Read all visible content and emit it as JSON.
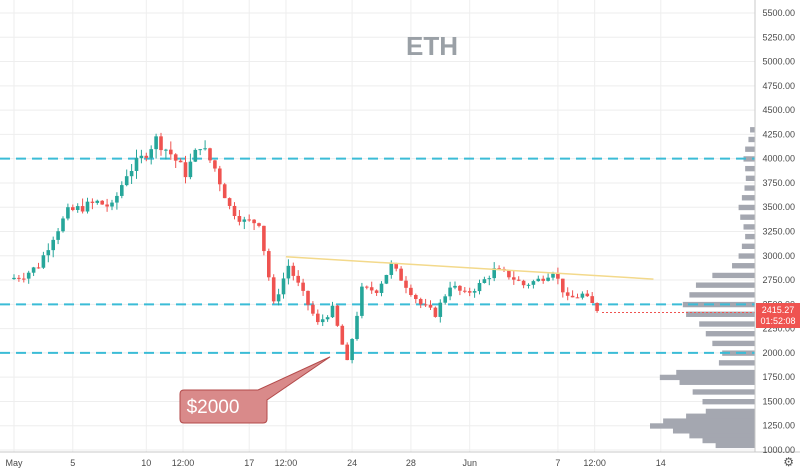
{
  "chart_data": {
    "type": "candlestick",
    "title": "ETH",
    "y_axis": {
      "position": "right",
      "min": 1000,
      "max": 5500,
      "ticks": [
        "1000.00",
        "1250.00",
        "1500.00",
        "1750.00",
        "2000.00",
        "2250.00",
        "2500.00",
        "2750.00",
        "3000.00",
        "3250.00",
        "3500.00",
        "3750.00",
        "4000.00",
        "4250.00",
        "4500.00",
        "4750.00",
        "5000.00",
        "5250.00",
        "5500.00"
      ]
    },
    "x_axis": {
      "ticks": [
        {
          "label": "May",
          "day": 0
        },
        {
          "label": "5",
          "day": 4
        },
        {
          "label": "10",
          "day": 9
        },
        {
          "label": "12:00",
          "day": 11.5
        },
        {
          "label": "17",
          "day": 16
        },
        {
          "label": "12:00",
          "day": 18.5
        },
        {
          "label": "24",
          "day": 23
        },
        {
          "label": "28",
          "day": 27
        },
        {
          "label": "Jun",
          "day": 31
        },
        {
          "label": "7",
          "day": 37
        },
        {
          "label": "12:00",
          "day": 39.5
        },
        {
          "label": "14",
          "day": 44
        }
      ]
    },
    "price_path": [
      [
        0,
        2760
      ],
      [
        1,
        2800
      ],
      [
        2,
        2900
      ],
      [
        3,
        3200
      ],
      [
        4,
        3450
      ],
      [
        5,
        3500
      ],
      [
        6,
        3550
      ],
      [
        7,
        3500
      ],
      [
        8,
        3850
      ],
      [
        9,
        4000
      ],
      [
        10,
        4200
      ],
      [
        11,
        4050
      ],
      [
        12,
        3850
      ],
      [
        13,
        4150
      ],
      [
        14,
        3900
      ],
      [
        15,
        3500
      ],
      [
        16,
        3350
      ],
      [
        17,
        3350
      ],
      [
        18,
        2500
      ],
      [
        19,
        2900
      ],
      [
        20,
        2600
      ],
      [
        21,
        2300
      ],
      [
        22,
        2450
      ],
      [
        23,
        1900
      ],
      [
        24,
        2650
      ],
      [
        25,
        2650
      ],
      [
        26,
        2900
      ],
      [
        27,
        2700
      ],
      [
        28,
        2500
      ],
      [
        29,
        2400
      ],
      [
        30,
        2700
      ],
      [
        31,
        2600
      ],
      [
        32,
        2700
      ],
      [
        33,
        2850
      ],
      [
        34,
        2800
      ],
      [
        35,
        2700
      ],
      [
        36,
        2750
      ],
      [
        37,
        2850
      ],
      [
        38,
        2550
      ],
      [
        39,
        2600
      ],
      [
        40,
        2450
      ]
    ],
    "horizontal_levels": [
      {
        "price": 4000,
        "color": "#3bbcd6",
        "style": "dashed"
      },
      {
        "price": 2500,
        "color": "#3bbcd6",
        "style": "dashed"
      },
      {
        "price": 2000,
        "color": "#3bbcd6",
        "style": "dashed"
      }
    ],
    "trendline": {
      "from": {
        "day": 18.5,
        "price": 2990
      },
      "to": {
        "day": 43.5,
        "price": 2760
      },
      "color": "#f3d98b"
    },
    "volume_profile": {
      "color": "#a4a7b0",
      "rows": [
        [
          4300,
          0.15
        ],
        [
          4200,
          0.2
        ],
        [
          4100,
          0.3
        ],
        [
          4000,
          0.35
        ],
        [
          3900,
          0.3
        ],
        [
          3800,
          0.28
        ],
        [
          3700,
          0.32
        ],
        [
          3600,
          0.4
        ],
        [
          3500,
          0.5
        ],
        [
          3400,
          0.45
        ],
        [
          3300,
          0.35
        ],
        [
          3200,
          0.3
        ],
        [
          3100,
          0.4
        ],
        [
          3000,
          0.5
        ],
        [
          2900,
          0.7
        ],
        [
          2800,
          1.3
        ],
        [
          2700,
          1.8
        ],
        [
          2600,
          2.0
        ],
        [
          2500,
          2.2
        ],
        [
          2400,
          2.1
        ],
        [
          2300,
          1.7
        ],
        [
          2200,
          1.5
        ],
        [
          2100,
          1.3
        ],
        [
          2000,
          1.0
        ],
        [
          1900,
          1.1
        ],
        [
          1800,
          2.4
        ],
        [
          1750,
          2.9
        ],
        [
          1700,
          2.3
        ],
        [
          1600,
          1.9
        ],
        [
          1500,
          1.6
        ],
        [
          1400,
          1.5
        ],
        [
          1350,
          2.1
        ],
        [
          1300,
          2.8
        ],
        [
          1250,
          3.2
        ],
        [
          1200,
          2.5
        ],
        [
          1150,
          2.0
        ],
        [
          1100,
          1.6
        ],
        [
          1050,
          1.2
        ]
      ]
    },
    "last_price": {
      "price": "2415.27",
      "countdown": "01:52:08",
      "value": 2415.27,
      "color": "#ef5350"
    },
    "callout": {
      "text": "$2000",
      "fill": "#d98a8a",
      "stroke": "#b34a4a"
    },
    "colors": {
      "up": "#26a69a",
      "down": "#ef5350",
      "grid": "#eeeeee",
      "axis_text": "#4a4a4a"
    }
  }
}
